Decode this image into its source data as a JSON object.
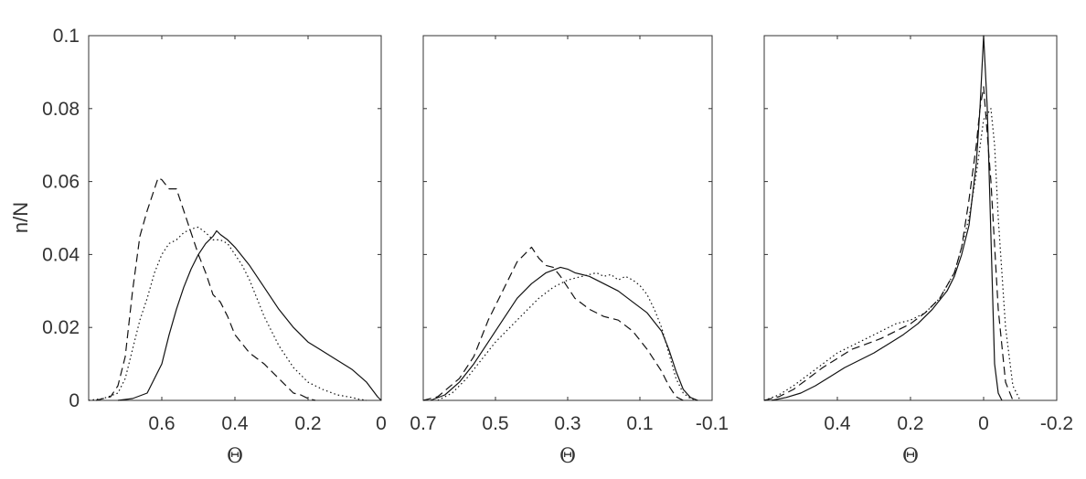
{
  "chart_data": [
    {
      "type": "line",
      "xlabel": "Θ",
      "ylabel": "n/N",
      "xlim": [
        0.8,
        0
      ],
      "ylim": [
        0,
        0.1
      ],
      "x_reversed": true,
      "xticks": [
        0.6,
        0.4,
        0.2,
        0
      ],
      "xtick_labels": [
        "0.6",
        "0.4",
        "0.2",
        "0"
      ],
      "yticks": [
        0,
        0.02,
        0.04,
        0.06,
        0.08,
        0.1
      ],
      "ytick_labels": [
        "0",
        "0.02",
        "0.04",
        "0.06",
        "0.08",
        "0.1"
      ],
      "grid": false,
      "series": [
        {
          "style": "solid",
          "x": [
            0.72,
            0.68,
            0.64,
            0.6,
            0.58,
            0.56,
            0.54,
            0.52,
            0.5,
            0.48,
            0.46,
            0.45,
            0.44,
            0.42,
            0.4,
            0.36,
            0.32,
            0.28,
            0.24,
            0.2,
            0.16,
            0.12,
            0.08,
            0.04,
            0.01,
            0
          ],
          "y": [
            0,
            0.0005,
            0.002,
            0.01,
            0.018,
            0.025,
            0.031,
            0.036,
            0.04,
            0.043,
            0.045,
            0.0465,
            0.0455,
            0.044,
            0.042,
            0.037,
            0.031,
            0.025,
            0.02,
            0.016,
            0.0135,
            0.011,
            0.0085,
            0.005,
            0.001,
            0
          ]
        },
        {
          "style": "dashed",
          "x": [
            0.78,
            0.74,
            0.72,
            0.7,
            0.68,
            0.66,
            0.64,
            0.62,
            0.61,
            0.6,
            0.58,
            0.56,
            0.54,
            0.52,
            0.5,
            0.48,
            0.46,
            0.44,
            0.42,
            0.4,
            0.36,
            0.32,
            0.28,
            0.24,
            0.22,
            0.2,
            0.18
          ],
          "y": [
            0,
            0.001,
            0.004,
            0.012,
            0.03,
            0.045,
            0.052,
            0.058,
            0.061,
            0.0605,
            0.058,
            0.058,
            0.052,
            0.046,
            0.04,
            0.035,
            0.029,
            0.027,
            0.023,
            0.018,
            0.013,
            0.01,
            0.006,
            0.002,
            0.0015,
            0.0005,
            0
          ]
        },
        {
          "style": "dotted",
          "x": [
            0.8,
            0.76,
            0.72,
            0.7,
            0.68,
            0.66,
            0.64,
            0.62,
            0.6,
            0.58,
            0.56,
            0.54,
            0.52,
            0.5,
            0.48,
            0.46,
            0.44,
            0.42,
            0.4,
            0.38,
            0.36,
            0.32,
            0.28,
            0.24,
            0.2,
            0.16,
            0.12,
            0.08,
            0.06,
            0.04
          ],
          "y": [
            0,
            0.0005,
            0.002,
            0.006,
            0.014,
            0.022,
            0.028,
            0.035,
            0.04,
            0.043,
            0.044,
            0.046,
            0.047,
            0.0475,
            0.046,
            0.044,
            0.044,
            0.043,
            0.04,
            0.037,
            0.033,
            0.023,
            0.015,
            0.009,
            0.005,
            0.003,
            0.0015,
            0.0008,
            0.0003,
            0
          ]
        }
      ]
    },
    {
      "type": "line",
      "xlabel": "Θ",
      "xlim": [
        0.7,
        -0.1
      ],
      "ylim": [
        0,
        0.1
      ],
      "x_reversed": true,
      "xticks": [
        0.7,
        0.5,
        0.3,
        0.1,
        -0.1
      ],
      "xtick_labels": [
        "0.7",
        "0.5",
        "0.3",
        "0.1",
        "-0.1"
      ],
      "yticks": [
        0,
        0.02,
        0.04,
        0.06,
        0.08,
        0.1
      ],
      "grid": false,
      "series": [
        {
          "style": "solid",
          "x": [
            0.68,
            0.64,
            0.6,
            0.56,
            0.52,
            0.48,
            0.44,
            0.4,
            0.36,
            0.32,
            0.3,
            0.28,
            0.24,
            0.2,
            0.16,
            0.12,
            0.08,
            0.04,
            0.02,
            0,
            -0.02,
            -0.04,
            -0.06
          ],
          "y": [
            0,
            0.0015,
            0.005,
            0.01,
            0.016,
            0.022,
            0.028,
            0.032,
            0.035,
            0.0365,
            0.036,
            0.035,
            0.034,
            0.032,
            0.03,
            0.027,
            0.024,
            0.019,
            0.014,
            0.008,
            0.003,
            0.0008,
            0
          ]
        },
        {
          "style": "dashed",
          "x": [
            0.7,
            0.66,
            0.6,
            0.56,
            0.52,
            0.48,
            0.46,
            0.44,
            0.42,
            0.4,
            0.38,
            0.36,
            0.34,
            0.32,
            0.3,
            0.28,
            0.24,
            0.2,
            0.16,
            0.12,
            0.08,
            0.06,
            0.04,
            0.02,
            0,
            -0.02
          ],
          "y": [
            0,
            0.001,
            0.006,
            0.012,
            0.022,
            0.03,
            0.034,
            0.038,
            0.04,
            0.042,
            0.039,
            0.037,
            0.0365,
            0.034,
            0.031,
            0.028,
            0.025,
            0.023,
            0.022,
            0.019,
            0.014,
            0.011,
            0.008,
            0.004,
            0.001,
            0
          ]
        },
        {
          "style": "dotted",
          "x": [
            0.66,
            0.62,
            0.58,
            0.54,
            0.5,
            0.46,
            0.42,
            0.38,
            0.34,
            0.3,
            0.26,
            0.22,
            0.2,
            0.18,
            0.16,
            0.14,
            0.12,
            0.1,
            0.08,
            0.06,
            0.04,
            0.02,
            0,
            -0.02,
            -0.04,
            -0.06
          ],
          "y": [
            0,
            0.002,
            0.006,
            0.011,
            0.016,
            0.02,
            0.024,
            0.028,
            0.031,
            0.033,
            0.034,
            0.035,
            0.034,
            0.0345,
            0.033,
            0.034,
            0.033,
            0.0315,
            0.029,
            0.025,
            0.02,
            0.013,
            0.006,
            0.002,
            0.0005,
            0
          ]
        }
      ]
    },
    {
      "type": "line",
      "xlabel": "Θ",
      "xlim": [
        0.6,
        -0.2
      ],
      "ylim": [
        0,
        0.1
      ],
      "x_reversed": true,
      "xticks": [
        0.4,
        0.2,
        0,
        -0.2
      ],
      "xtick_labels": [
        "0.4",
        "0.2",
        "0",
        "-0.2"
      ],
      "yticks": [
        0,
        0.02,
        0.04,
        0.06,
        0.08,
        0.1
      ],
      "grid": false,
      "series": [
        {
          "style": "solid",
          "x": [
            0.58,
            0.54,
            0.5,
            0.46,
            0.42,
            0.38,
            0.34,
            0.3,
            0.26,
            0.22,
            0.18,
            0.14,
            0.1,
            0.08,
            0.06,
            0.04,
            0.02,
            0.01,
            0,
            -0.01,
            -0.02,
            -0.03,
            -0.04,
            -0.05
          ],
          "y": [
            0,
            0.0008,
            0.002,
            0.004,
            0.0065,
            0.009,
            0.011,
            0.013,
            0.0155,
            0.018,
            0.021,
            0.025,
            0.03,
            0.034,
            0.04,
            0.048,
            0.065,
            0.08,
            0.1,
            0.08,
            0.045,
            0.01,
            0.002,
            0
          ]
        },
        {
          "style": "dashed",
          "x": [
            0.6,
            0.56,
            0.52,
            0.48,
            0.44,
            0.4,
            0.36,
            0.32,
            0.28,
            0.24,
            0.2,
            0.16,
            0.12,
            0.08,
            0.06,
            0.04,
            0.02,
            0.01,
            0,
            -0.02,
            -0.04,
            -0.06,
            -0.08
          ],
          "y": [
            0,
            0.001,
            0.003,
            0.006,
            0.009,
            0.0115,
            0.014,
            0.0155,
            0.017,
            0.019,
            0.021,
            0.024,
            0.028,
            0.035,
            0.042,
            0.055,
            0.07,
            0.08,
            0.086,
            0.06,
            0.025,
            0.005,
            0
          ]
        },
        {
          "style": "dotted",
          "x": [
            0.6,
            0.56,
            0.52,
            0.48,
            0.44,
            0.4,
            0.36,
            0.32,
            0.28,
            0.24,
            0.2,
            0.16,
            0.12,
            0.08,
            0.06,
            0.04,
            0.02,
            0,
            -0.02,
            -0.03,
            -0.04,
            -0.06,
            -0.08,
            -0.1
          ],
          "y": [
            0,
            0.0015,
            0.004,
            0.007,
            0.01,
            0.013,
            0.015,
            0.017,
            0.019,
            0.021,
            0.022,
            0.024,
            0.028,
            0.035,
            0.042,
            0.05,
            0.062,
            0.077,
            0.08,
            0.07,
            0.05,
            0.02,
            0.004,
            0
          ]
        }
      ]
    }
  ]
}
